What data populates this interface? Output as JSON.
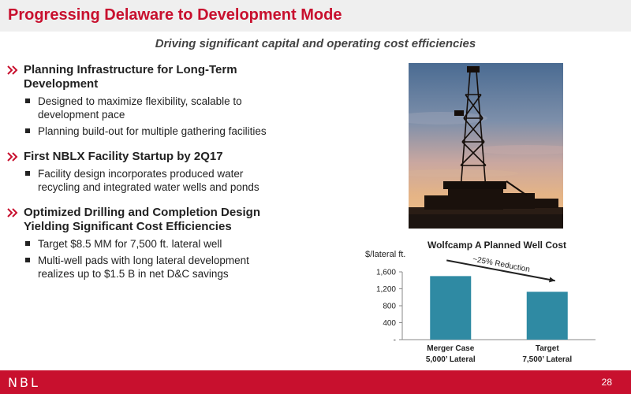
{
  "header": {
    "title": "Progressing Delaware to Development Mode"
  },
  "subtitle": "Driving significant capital and operating cost efficiencies",
  "bullets": [
    {
      "heading_lines": [
        "Planning Infrastructure for Long-Term",
        "Development"
      ],
      "subs": [
        {
          "lines": [
            "Designed to maximize flexibility, scalable to",
            "development pace"
          ]
        },
        {
          "lines": [
            "Planning build-out for multiple gathering facilities"
          ]
        }
      ]
    },
    {
      "heading_lines": [
        "First NBLX Facility Startup by 2Q17"
      ],
      "subs": [
        {
          "lines": [
            "Facility design incorporates produced water",
            "recycling and integrated water wells and ponds"
          ]
        }
      ]
    },
    {
      "heading_lines": [
        "Optimized Drilling and Completion Design",
        "Yielding Significant Cost Efficiencies"
      ],
      "subs": [
        {
          "lines": [
            "Target $8.5 MM for 7,500 ft. lateral well"
          ]
        },
        {
          "lines": [
            "Multi-well pads with long lateral development",
            "realizes up to  $1.5 B in net D&C savings"
          ]
        }
      ]
    }
  ],
  "chart_data": {
    "type": "bar",
    "title": "Wolfcamp A Planned Well Cost",
    "ylabel": "$/lateral ft.",
    "categories": [
      [
        "Merger Case",
        "5,000’ Lateral"
      ],
      [
        "Target",
        "7,500’ Lateral"
      ]
    ],
    "values": [
      1500,
      1130
    ],
    "ylim": [
      0,
      1600
    ],
    "yticks": [
      0,
      400,
      800,
      1200,
      1600
    ],
    "ytick_labels": [
      "-",
      "400",
      "800",
      "1,200",
      "1,600"
    ],
    "annotation": "~25% Reduction",
    "bar_color": "#2f8aa3",
    "grid": false
  },
  "footer": {
    "logo": "NBL",
    "page": "28"
  },
  "colors": {
    "accent": "#c8102e"
  }
}
